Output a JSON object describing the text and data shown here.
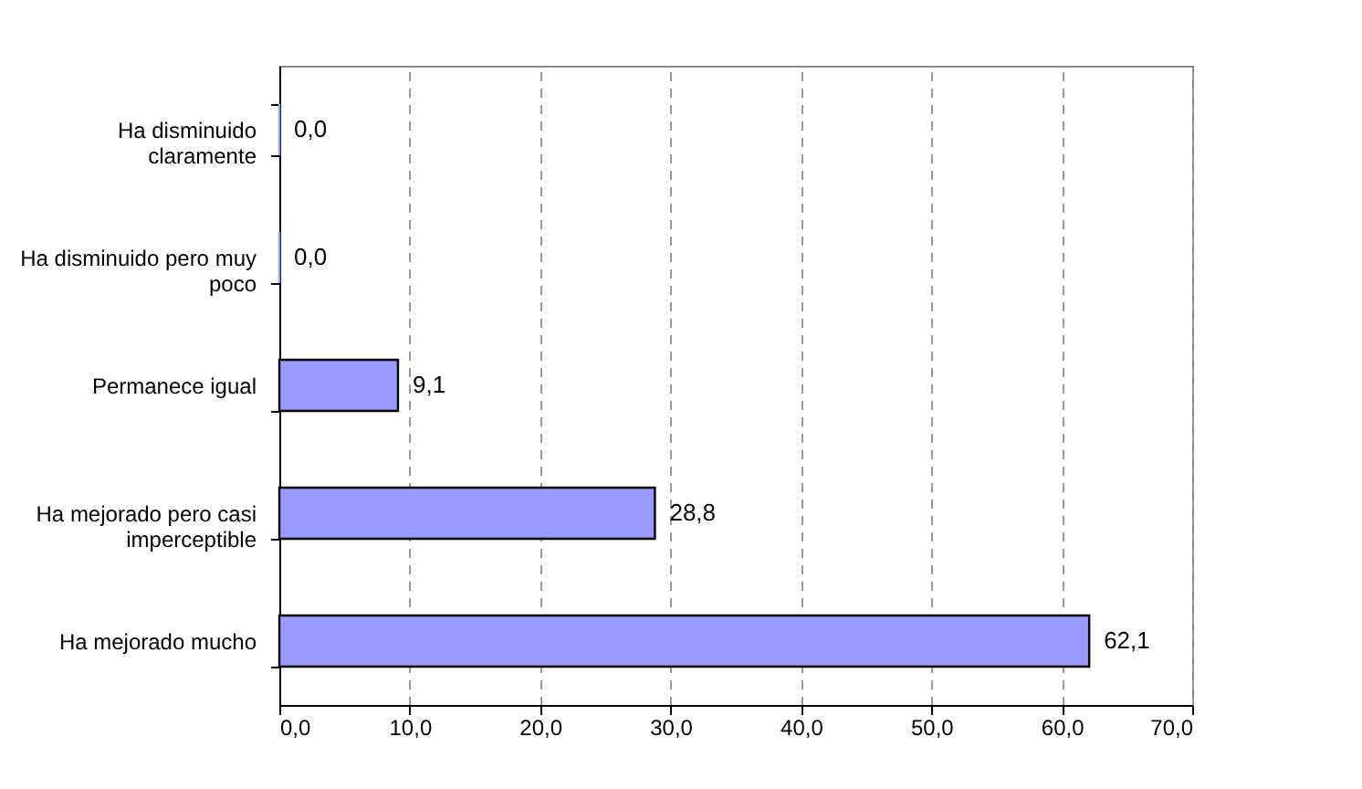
{
  "chart_data": {
    "type": "bar",
    "orientation": "horizontal",
    "categories": [
      "Ha disminuido claramente",
      "Ha disminuido pero muy poco",
      "Permanece igual",
      "Ha mejorado pero casi imperceptible",
      "Ha mejorado mucho"
    ],
    "values": [
      0.0,
      0.0,
      9.1,
      28.8,
      62.1
    ],
    "color": "#9999ff",
    "xlim": [
      0,
      70
    ],
    "xticks": [
      {
        "value": 0,
        "label": "0,0"
      },
      {
        "value": 10,
        "label": "10,0"
      },
      {
        "value": 20,
        "label": "20,0"
      },
      {
        "value": 30,
        "label": "30,0"
      },
      {
        "value": 40,
        "label": "40,0"
      },
      {
        "value": 50,
        "label": "50,0"
      },
      {
        "value": 60,
        "label": "60,0"
      },
      {
        "value": 70,
        "label": "70,0"
      }
    ],
    "value_labels": [
      "0,0",
      "0,0",
      "9,1",
      "28,8",
      "62,1"
    ],
    "grid": "x"
  }
}
